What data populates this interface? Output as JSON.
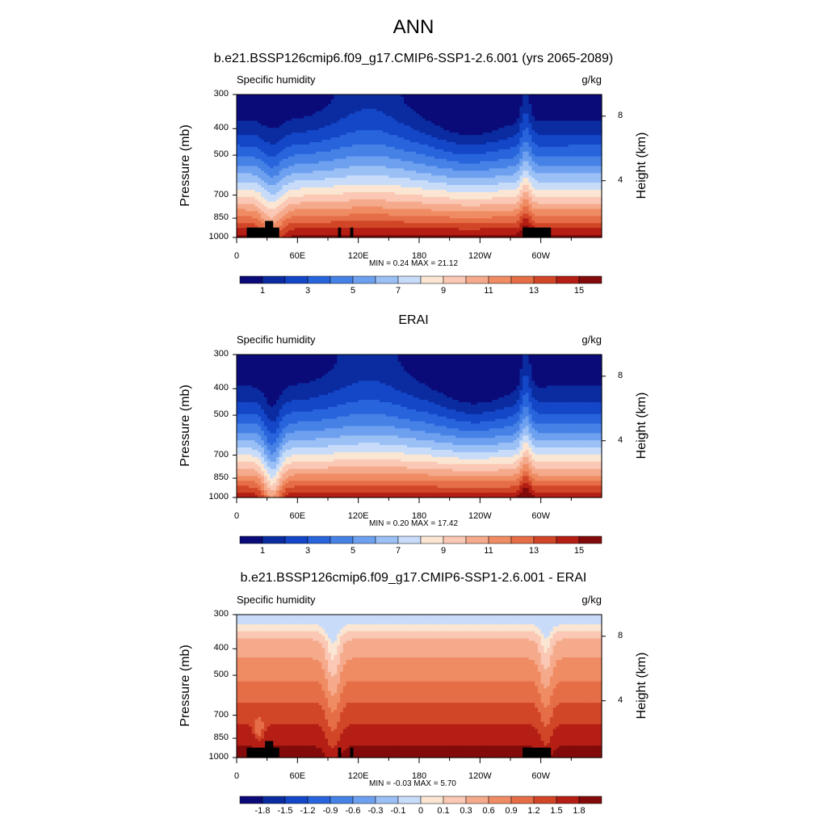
{
  "figure": {
    "title": "ANN",
    "variable_label": "Specific humidity",
    "units": "g/kg",
    "ylabel_left": "Pressure (mb)",
    "ylabel_right": "Height (km)"
  },
  "chart_data": [
    {
      "type": "heatmap",
      "title": "b.e21.BSSP126cmip6.f09_g17.CMIP6-SSP1-2.6.001 (yrs 2065-2089)",
      "subtitle_left": "Specific humidity",
      "subtitle_right": "g/kg",
      "xlabel": "",
      "ylabel": "Pressure (mb)",
      "ylabel_right": "Height (km)",
      "x_ticks": [
        "0",
        "60E",
        "120E",
        "180",
        "120W",
        "60W"
      ],
      "y_ticks": [
        "300",
        "400",
        "500",
        "700",
        "850",
        "1000"
      ],
      "y_right_ticks": [
        "8",
        "4"
      ],
      "ylim": [
        1000,
        300
      ],
      "y_scale": "log",
      "min_max_text": "MIN =   0.24  MAX =  21.12",
      "min": 0.24,
      "max": 21.12,
      "colorbar_levels": [
        0,
        1,
        2,
        3,
        4,
        5,
        6,
        7,
        8,
        9,
        10,
        11,
        12,
        13,
        14,
        15
      ],
      "colorbar_labels": [
        "1",
        "3",
        "5",
        "7",
        "9",
        "11",
        "13",
        "15"
      ],
      "colors": [
        "#0a0a78",
        "#0a2ca0",
        "#1446c8",
        "#2864dc",
        "#4682e6",
        "#6ea0f0",
        "#9ac0f5",
        "#c8dcfa",
        "#fae6d2",
        "#fac8b4",
        "#f5aa8c",
        "#f08c64",
        "#e66e46",
        "#d24628",
        "#b41e14",
        "#820a0a"
      ]
    },
    {
      "type": "heatmap",
      "title": "ERAI",
      "subtitle_left": "Specific humidity",
      "subtitle_right": "g/kg",
      "xlabel": "",
      "ylabel": "Pressure (mb)",
      "ylabel_right": "Height (km)",
      "x_ticks": [
        "0",
        "60E",
        "120E",
        "180",
        "120W",
        "60W"
      ],
      "y_ticks": [
        "300",
        "400",
        "500",
        "700",
        "850",
        "1000"
      ],
      "y_right_ticks": [
        "8",
        "4"
      ],
      "ylim": [
        1000,
        300
      ],
      "y_scale": "log",
      "min_max_text": "MIN =   0.20  MAX =  17.42",
      "min": 0.2,
      "max": 17.42,
      "colorbar_levels": [
        0,
        1,
        2,
        3,
        4,
        5,
        6,
        7,
        8,
        9,
        10,
        11,
        12,
        13,
        14,
        15
      ],
      "colorbar_labels": [
        "1",
        "3",
        "5",
        "7",
        "9",
        "11",
        "13",
        "15"
      ],
      "colors": [
        "#0a0a78",
        "#0a2ca0",
        "#1446c8",
        "#2864dc",
        "#4682e6",
        "#6ea0f0",
        "#9ac0f5",
        "#c8dcfa",
        "#fae6d2",
        "#fac8b4",
        "#f5aa8c",
        "#f08c64",
        "#e66e46",
        "#d24628",
        "#b41e14",
        "#820a0a"
      ]
    },
    {
      "type": "heatmap",
      "title": "b.e21.BSSP126cmip6.f09_g17.CMIP6-SSP1-2.6.001 - ERAI",
      "subtitle_left": "Specific humidity",
      "subtitle_right": "g/kg",
      "xlabel": "",
      "ylabel": "Pressure (mb)",
      "ylabel_right": "Height (km)",
      "x_ticks": [
        "0",
        "60E",
        "120E",
        "180",
        "120W",
        "60W"
      ],
      "y_ticks": [
        "300",
        "400",
        "500",
        "700",
        "850",
        "1000"
      ],
      "y_right_ticks": [
        "8",
        "4"
      ],
      "ylim": [
        1000,
        300
      ],
      "y_scale": "log",
      "min_max_text": "MIN =  -0.03  MAX =   5.70",
      "min": -0.03,
      "max": 5.7,
      "colorbar_labels": [
        "-1.8",
        "-1.5",
        "-1.2",
        "-0.9",
        "-0.6",
        "-0.3",
        "-0.1",
        "0",
        "0.1",
        "0.3",
        "0.6",
        "0.9",
        "1.2",
        "1.5",
        "1.8"
      ],
      "colors": [
        "#0a0a78",
        "#0a2ca0",
        "#1446c8",
        "#2864dc",
        "#4682e6",
        "#6ea0f0",
        "#9ac0f5",
        "#c8dcfa",
        "#fae6d2",
        "#fac8b4",
        "#f5aa8c",
        "#f08c64",
        "#e66e46",
        "#d24628",
        "#b41e14",
        "#820a0a"
      ]
    }
  ]
}
